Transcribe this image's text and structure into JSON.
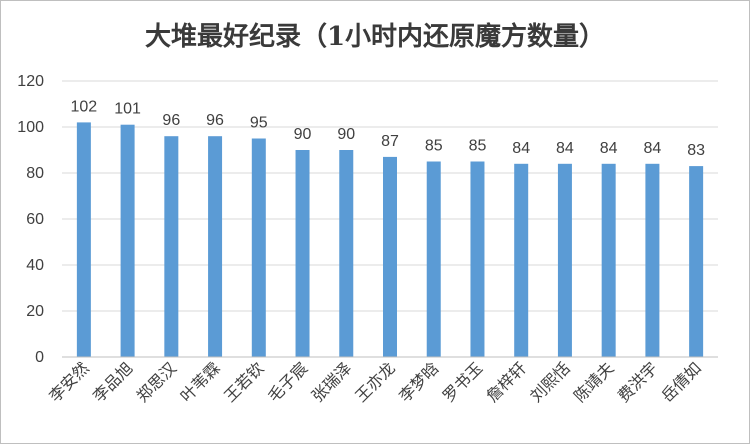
{
  "chart_data": {
    "type": "bar",
    "title": "大堆最好纪录（1小时内还原魔方数量）",
    "categories": [
      "李安然",
      "李品旭",
      "郑思汉",
      "叶苇霖",
      "王若钦",
      "毛子宸",
      "张瑞泽",
      "王亦龙",
      "李梦晗",
      "罗书玉",
      "詹梓轩",
      "刘熙恬",
      "陈靖夫",
      "费洪宇",
      "岳倩如"
    ],
    "values": [
      102,
      101,
      96,
      96,
      95,
      90,
      90,
      87,
      85,
      85,
      84,
      84,
      84,
      84,
      83
    ],
    "ylim": [
      0,
      120
    ],
    "yticks": [
      0,
      20,
      40,
      60,
      80,
      100,
      120
    ],
    "xlabel": "",
    "ylabel": "",
    "grid": true,
    "legend": "none",
    "bar_color": "#5b9bd5",
    "grid_color": "#d9d9d9",
    "axis_color": "#bfbfbf"
  }
}
